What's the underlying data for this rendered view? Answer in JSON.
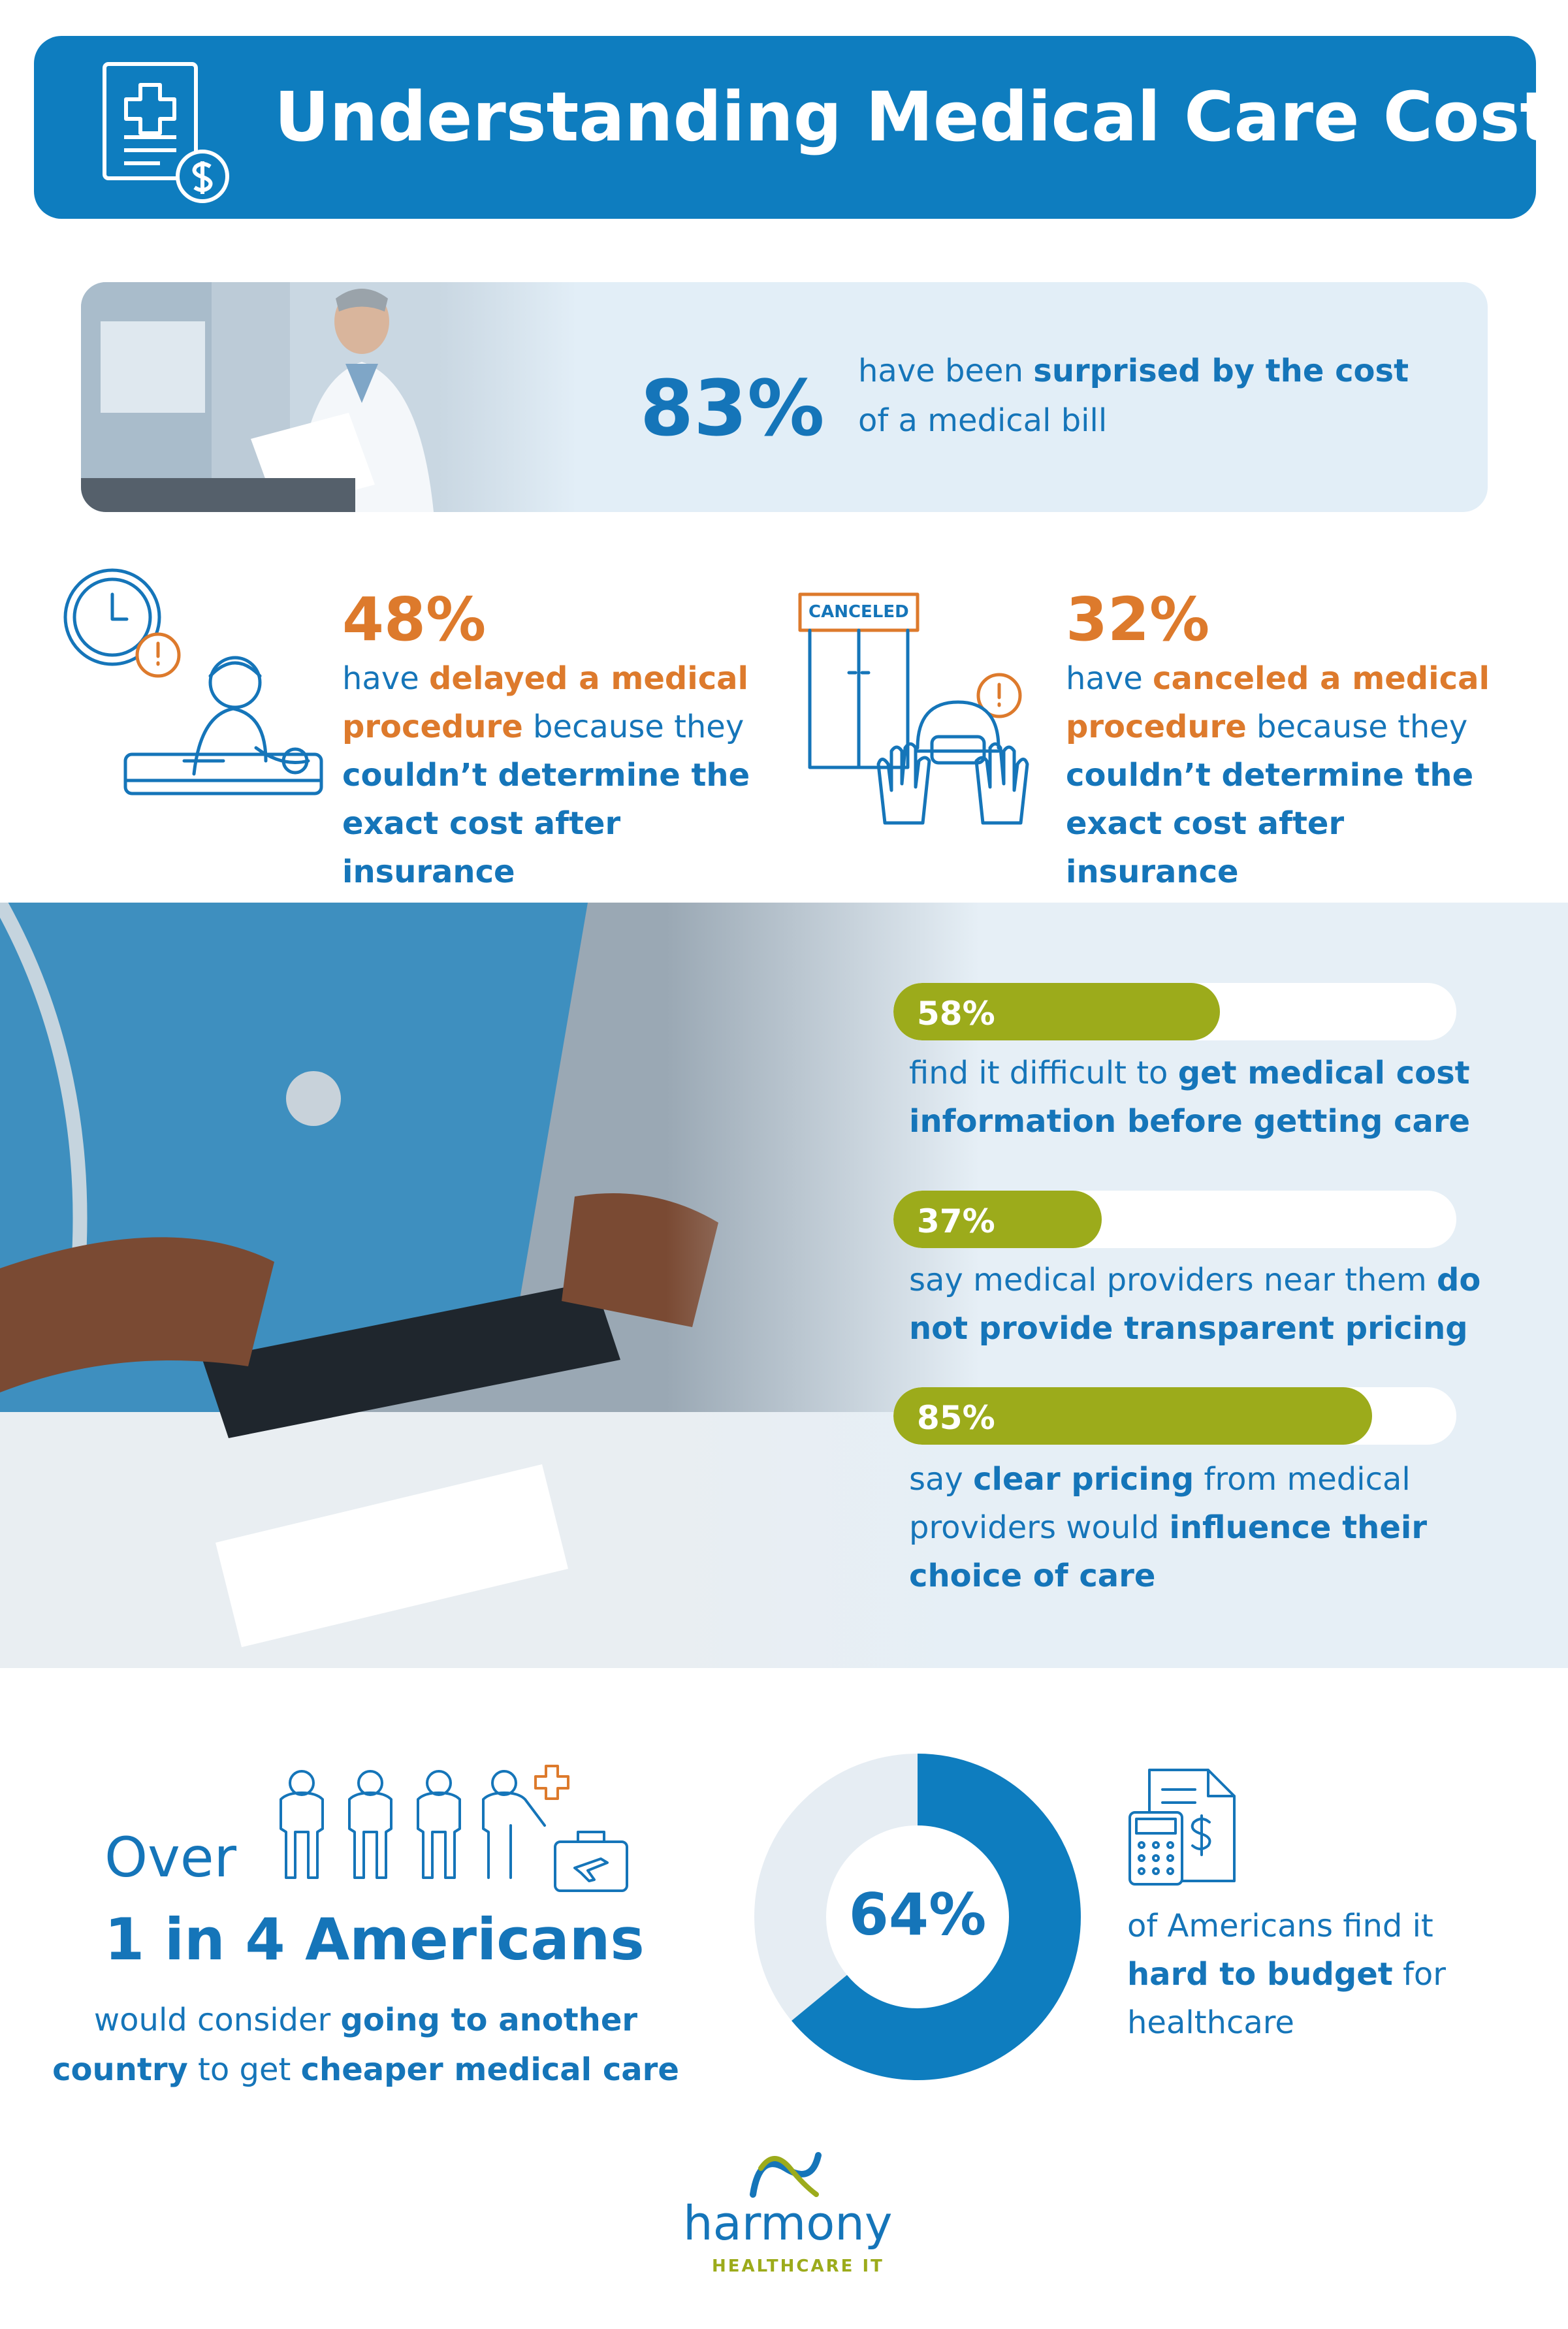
{
  "header": {
    "title": "Understanding Medical Care Costs",
    "icon": "medical-bill-icon"
  },
  "stat_surprised": {
    "percent": "83%",
    "text_pre": "have been ",
    "text_bold": "surprised by the cost",
    "text_post": " of a medical bill"
  },
  "stat_delayed": {
    "percent": "48%",
    "t1": "have ",
    "t2_bold": "delayed a medical procedure",
    "t3": " because they ",
    "t4_bold": "couldn’t determine the exact cost after insurance"
  },
  "stat_canceled": {
    "sign": "CANCELED",
    "percent": "32%",
    "t1": "have ",
    "t2_bold": "canceled a medical procedure",
    "t3": " because they ",
    "t4_bold": "couldn’t determine the exact cost after insurance"
  },
  "bars": [
    {
      "label": "58%",
      "value": 0.58,
      "text_pre": "find it difficult to ",
      "text_bold": "get medical cost information before getting care",
      "text_mid": "",
      "text_bold2": "",
      "text_post": ""
    },
    {
      "label": "37%",
      "value": 0.37,
      "text_pre": "say medical providers near them ",
      "text_bold": "do not provide transparent pricing",
      "text_mid": "",
      "text_bold2": "",
      "text_post": ""
    },
    {
      "label": "85%",
      "value": 0.85,
      "text_pre": "say ",
      "text_bold": "clear pricing",
      "text_mid": " from medical providers would ",
      "text_bold2": "influence their choice of care",
      "text_post": ""
    }
  ],
  "travel": {
    "over": "Over",
    "headline": "1 in 4  Americans",
    "t1": "would consider ",
    "t2_bold": "going to another country",
    "t3": " to get ",
    "t4_bold": "cheaper medical care"
  },
  "budget": {
    "percent": "64%",
    "value": 0.64,
    "t1": "of Americans find it ",
    "t2_bold": "hard to budget",
    "t3": " for healthcare"
  },
  "logo": {
    "word": "harmony",
    "sub": "HEALTHCARE IT"
  },
  "colors": {
    "blue": "#1575b9",
    "orange": "#dd7a2c",
    "green": "#9cab1b",
    "light": "#e2eef7"
  }
}
